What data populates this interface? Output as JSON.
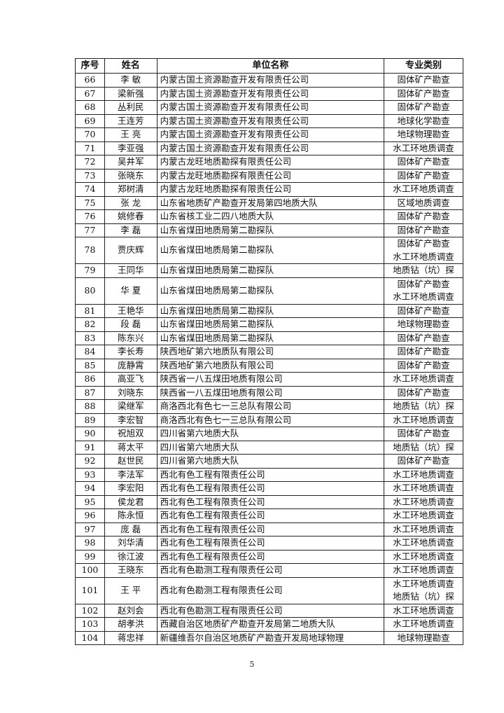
{
  "table": {
    "header": [
      "序号",
      "姓名",
      "单位名称",
      "专业类别"
    ],
    "rows": [
      [
        66,
        "李 敏",
        "内蒙古国土资源勘查开发有限责任公司",
        [
          "固体矿产勘查"
        ]
      ],
      [
        67,
        "梁新强",
        "内蒙古国土资源勘查开发有限责任公司",
        [
          "固体矿产勘查"
        ]
      ],
      [
        68,
        "丛利民",
        "内蒙古国土资源勘查开发有限责任公司",
        [
          "固体矿产勘查"
        ]
      ],
      [
        69,
        "王连芳",
        "内蒙古国土资源勘查开发有限责任公司",
        [
          "地球化学勘查"
        ]
      ],
      [
        70,
        "王 亮",
        "内蒙古国土资源勘查开发有限责任公司",
        [
          "地球物理勘查"
        ]
      ],
      [
        71,
        "李亚强",
        "内蒙古国土资源勘查开发有限责任公司",
        [
          "水工环地质调查"
        ]
      ],
      [
        72,
        "吴井军",
        "内蒙古龙旺地质勘探有限责任公司",
        [
          "固体矿产勘查"
        ]
      ],
      [
        73,
        "张晓东",
        "内蒙古龙旺地质勘探有限责任公司",
        [
          "固体矿产勘查"
        ]
      ],
      [
        74,
        "郑树清",
        "内蒙古龙旺地质勘探有限责任公司",
        [
          "水工环地质调查"
        ]
      ],
      [
        75,
        "张 龙",
        "山东省地质矿产勘查开发局第四地质大队",
        [
          "区域地质调查"
        ]
      ],
      [
        76,
        "姚修春",
        "山东省核工业二四八地质大队",
        [
          "固体矿产勘查"
        ]
      ],
      [
        77,
        "李 磊",
        "山东省煤田地质局第二勘探队",
        [
          "固体矿产勘查"
        ]
      ],
      [
        78,
        "贾庆辉",
        "山东省煤田地质局第二勘探队",
        [
          "固体矿产勘查",
          "水工环地质调查"
        ]
      ],
      [
        79,
        "王同华",
        "山东省煤田地质局第二勘探队",
        [
          "地质钻（坑）探"
        ]
      ],
      [
        80,
        "华 夏",
        "山东省煤田地质局第二勘探队",
        [
          "固体矿产勘查",
          "水工环地质调查"
        ]
      ],
      [
        81,
        "王艳华",
        "山东省煤田地质局第二勘探队",
        [
          "固体矿产勘查"
        ]
      ],
      [
        82,
        "段 磊",
        "山东省煤田地质局第二勘探队",
        [
          "地球物理勘查"
        ]
      ],
      [
        83,
        "陈东兴",
        "山东省煤田地质局第二勘探队",
        [
          "固体矿产勘查"
        ]
      ],
      [
        84,
        "李长寿",
        "陕西地矿第六地质队有限公司",
        [
          "固体矿产勘查"
        ]
      ],
      [
        85,
        "庞静霄",
        "陕西地矿第六地质队有限公司",
        [
          "固体矿产勘查"
        ]
      ],
      [
        86,
        "高亚飞",
        "陕西省一八五煤田地质有限公司",
        [
          "水工环地质调查"
        ]
      ],
      [
        87,
        "刘晓东",
        "陕西省一八五煤田地质有限公司",
        [
          "固体矿产勘查"
        ]
      ],
      [
        88,
        "梁继军",
        "商洛西北有色七一三总队有限公司",
        [
          "地质钻（坑）探"
        ]
      ],
      [
        89,
        "李宏智",
        "商洛西北有色七一三总队有限公司",
        [
          "水工环地质调查"
        ]
      ],
      [
        90,
        "祝旭双",
        "四川省第六地质大队",
        [
          "固体矿产勘查"
        ]
      ],
      [
        91,
        "蒋太平",
        "四川省第六地质大队",
        [
          "地质钻（坑）探"
        ]
      ],
      [
        92,
        "赵世民",
        "四川省第六地质大队",
        [
          "固体矿产勘查"
        ]
      ],
      [
        93,
        "李法军",
        "西北有色工程有限责任公司",
        [
          "水工环地质调查"
        ]
      ],
      [
        94,
        "李宏阳",
        "西北有色工程有限责任公司",
        [
          "水工环地质调查"
        ]
      ],
      [
        95,
        "侯龙君",
        "西北有色工程有限责任公司",
        [
          "水工环地质调查"
        ]
      ],
      [
        96,
        "陈永恒",
        "西北有色工程有限责任公司",
        [
          "水工环地质调查"
        ]
      ],
      [
        97,
        "庞 磊",
        "西北有色工程有限责任公司",
        [
          "水工环地质调查"
        ]
      ],
      [
        98,
        "刘华清",
        "西北有色工程有限责任公司",
        [
          "水工环地质调查"
        ]
      ],
      [
        99,
        "徐江波",
        "西北有色工程有限责任公司",
        [
          "水工环地质调查"
        ]
      ],
      [
        100,
        "王晓东",
        "西北有色勘测工程有限责任公司",
        [
          "水工环地质调查"
        ]
      ],
      [
        101,
        "王 平",
        "西北有色勘测工程有限责任公司",
        [
          "水工环地质调查",
          "地质钻（坑）探"
        ]
      ],
      [
        102,
        "赵刘会",
        "西北有色勘测工程有限责任公司",
        [
          "水工环地质调查"
        ]
      ],
      [
        103,
        "胡孝洪",
        "西藏自治区地质矿产勘查开发局第二地质大队",
        [
          "水工环地质调查"
        ]
      ],
      [
        104,
        "蒋忠祥",
        "新疆维吾尔自治区地质矿产勘查开发局地球物理",
        [
          "地球物理勘查"
        ]
      ]
    ]
  },
  "footer": {
    "page_number": 5
  }
}
